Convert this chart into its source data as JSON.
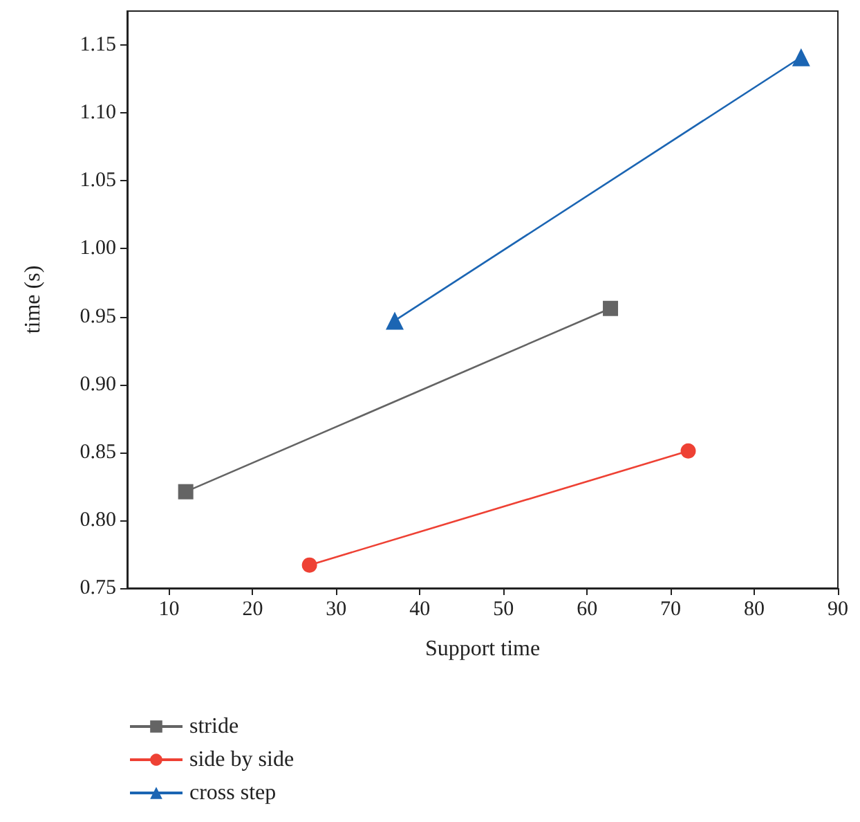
{
  "chart_data": {
    "type": "line",
    "xlabel": "Support time",
    "ylabel": "time (s)",
    "xlim": [
      5,
      90
    ],
    "xticks": [
      10,
      20,
      30,
      40,
      50,
      60,
      70,
      80,
      90
    ],
    "ylim": [
      0.75,
      1.175
    ],
    "yticks": [
      {
        "value": 0.75,
        "label": "0.75"
      },
      {
        "value": 0.8,
        "label": "0.80"
      },
      {
        "value": 0.85,
        "label": "0.85"
      },
      {
        "value": 0.9,
        "label": "0.90"
      },
      {
        "value": 0.95,
        "label": "0.95"
      },
      {
        "value": 1.0,
        "label": "1.00"
      },
      {
        "value": 1.05,
        "label": "1.05"
      },
      {
        "value": 1.1,
        "label": "1.10"
      },
      {
        "value": 1.15,
        "label": "1.15"
      }
    ],
    "grid": false,
    "legend": "bottom left",
    "series": [
      {
        "name": "stride",
        "color": "#646464",
        "marker": "square",
        "x": [
          12,
          62.8
        ],
        "values": [
          0.821,
          0.956
        ]
      },
      {
        "name": "side by side",
        "color": "#ee4134",
        "marker": "circle",
        "x": [
          26.8,
          72.1
        ],
        "values": [
          0.767,
          0.851
        ]
      },
      {
        "name": "cross step",
        "color": "#1b65b3",
        "marker": "triangle",
        "x": [
          37,
          85.6
        ],
        "values": [
          0.947,
          1.141
        ]
      }
    ]
  }
}
